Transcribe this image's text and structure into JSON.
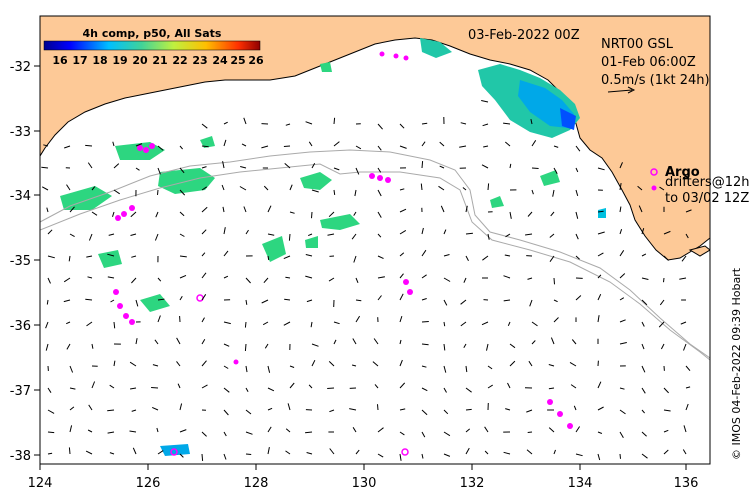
{
  "map": {
    "date_label": "03-Feb-2022 00Z",
    "product_line1": "NRT00 GSL",
    "product_line2": "01-Feb 06:00Z",
    "product_line3": "0.5m/s (1kt 24h)",
    "colorbar_title": "4h comp, p50, All Sats",
    "colorbar_ticks": [
      "16",
      "17",
      "18",
      "19",
      "20",
      "21",
      "22",
      "23",
      "24",
      "25",
      "26"
    ],
    "legend_argo": "Argo",
    "legend_drifters_line1": "drifters@12h",
    "legend_drifters_line2": "to 03/02 12Z",
    "credit": "© IMOS 04-Feb-2022 09:39 Hobart",
    "x_ticks": [
      "124",
      "126",
      "128",
      "130",
      "132",
      "134",
      "136"
    ],
    "y_ticks": [
      "-32",
      "-33",
      "-34",
      "-35",
      "-36",
      "-37",
      "-38"
    ],
    "lon_range": [
      124,
      136.5
    ],
    "lat_range": [
      -38.1,
      -31.3
    ],
    "colors": {
      "land": "#fdc997",
      "ocean": "#ffffff",
      "argo": "#ff00ff",
      "bathymetry": "#aaaaaa"
    }
  }
}
